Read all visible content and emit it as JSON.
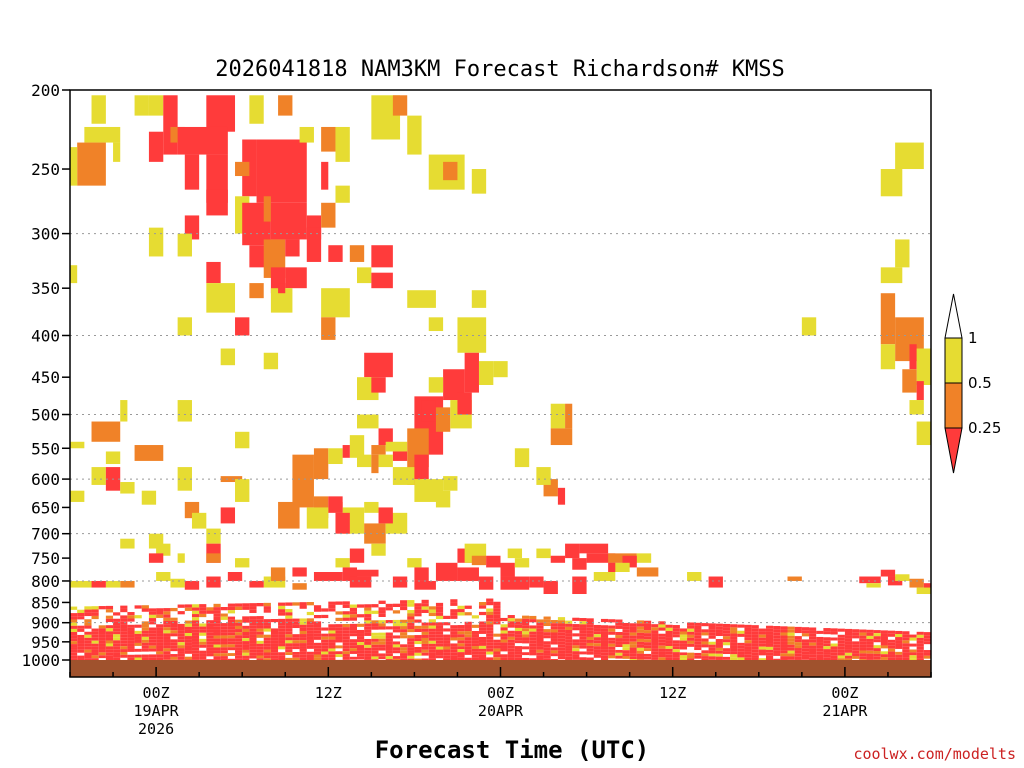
{
  "chart_data": {
    "type": "heatmap",
    "title": "2026041818 NAM3KM Forecast Richardson# KMSS",
    "xlabel": "Forecast Time (UTC)",
    "credit": "coolwx.com/modelts",
    "y_scale": "log-pressure",
    "y_range": [
      1000,
      200
    ],
    "y_ticks": [
      200,
      250,
      300,
      350,
      400,
      450,
      500,
      550,
      600,
      650,
      700,
      750,
      800,
      850,
      900,
      950,
      1000
    ],
    "y_grid_levels": [
      300,
      400,
      500,
      600,
      700,
      800,
      900
    ],
    "x_range_hours": [
      0,
      60
    ],
    "x_ticks": [
      {
        "hour": 6,
        "line1": "00Z",
        "line2": "19APR",
        "line3": "2026"
      },
      {
        "hour": 18,
        "line1": "12Z",
        "line2": "",
        "line3": ""
      },
      {
        "hour": 30,
        "line1": "00Z",
        "line2": "20APR",
        "line3": ""
      },
      {
        "hour": 42,
        "line1": "12Z",
        "line2": "",
        "line3": ""
      },
      {
        "hour": 54,
        "line1": "00Z",
        "line2": "21APR",
        "line3": ""
      }
    ],
    "colorbar": {
      "labels": [
        "1",
        "0.5",
        "0.25"
      ],
      "colors": {
        "low": "#ff3b3b",
        "mid": "#f08228",
        "high": "#e6dc32",
        "top": "#ffffff"
      }
    },
    "categories_note": [
      "red = Ri < 0.25",
      "orange = 0.25–0.5",
      "yellow = 0.5–1"
    ],
    "ground_color": "#a0522d",
    "cells": [
      [
        "y",
        1.5,
        2.5,
        203,
        220
      ],
      [
        "y",
        4.5,
        5.5,
        203,
        215
      ],
      [
        "y",
        5.5,
        6.5,
        203,
        215
      ],
      [
        "r",
        6.5,
        7.5,
        203,
        240
      ],
      [
        "r",
        9.5,
        11.5,
        203,
        225
      ],
      [
        "y",
        12.5,
        13.5,
        203,
        220
      ],
      [
        "o",
        14.5,
        15.5,
        203,
        215
      ],
      [
        "y",
        21,
        23,
        203,
        230
      ],
      [
        "o",
        22.5,
        23.5,
        203,
        215
      ],
      [
        "y",
        23.5,
        24.5,
        215,
        240
      ],
      [
        "y",
        1,
        3.5,
        222,
        232
      ],
      [
        "o",
        0.5,
        2.5,
        232,
        262
      ],
      [
        "y",
        0,
        0.5,
        235,
        262
      ],
      [
        "y",
        3,
        3.5,
        232,
        245
      ],
      [
        "r",
        5.5,
        6.5,
        225,
        245
      ],
      [
        "o",
        7,
        8,
        222,
        232
      ],
      [
        "r",
        7.5,
        11,
        222,
        240
      ],
      [
        "r",
        8,
        9,
        240,
        265
      ],
      [
        "r",
        9.5,
        11,
        240,
        275
      ],
      [
        "r",
        12,
        13,
        230,
        270
      ],
      [
        "r",
        13,
        16.5,
        230,
        275
      ],
      [
        "o",
        11.5,
        12.5,
        245,
        255
      ],
      [
        "y",
        16,
        17,
        222,
        232
      ],
      [
        "o",
        17.5,
        18.5,
        222,
        238
      ],
      [
        "y",
        18.5,
        19.5,
        222,
        245
      ],
      [
        "r",
        17.5,
        18,
        245,
        265
      ],
      [
        "y",
        18.5,
        19.5,
        262,
        275
      ],
      [
        "r",
        9.5,
        11,
        265,
        285
      ],
      [
        "y",
        11.5,
        12.5,
        270,
        300
      ],
      [
        "r",
        12,
        14,
        275,
        310
      ],
      [
        "o",
        13.5,
        14,
        270,
        290
      ],
      [
        "r",
        14,
        16.5,
        275,
        305
      ],
      [
        "r",
        16.5,
        17.5,
        285,
        305
      ],
      [
        "o",
        17.5,
        18.5,
        275,
        295
      ],
      [
        "y",
        25,
        27.5,
        240,
        265
      ],
      [
        "o",
        26,
        27,
        245,
        258
      ],
      [
        "y",
        28,
        29,
        250,
        268
      ],
      [
        "y",
        57.5,
        59.5,
        232,
        250
      ],
      [
        "y",
        56.5,
        58,
        250,
        270
      ],
      [
        "r",
        8,
        9,
        285,
        305
      ],
      [
        "y",
        7.5,
        8.5,
        300,
        320
      ],
      [
        "y",
        5.5,
        6.5,
        295,
        320
      ],
      [
        "r",
        12.5,
        14,
        310,
        330
      ],
      [
        "o",
        13.5,
        15,
        305,
        340
      ],
      [
        "r",
        15,
        16,
        305,
        320
      ],
      [
        "r",
        16.5,
        17.5,
        295,
        325
      ],
      [
        "r",
        18,
        19,
        310,
        325
      ],
      [
        "o",
        19.5,
        20.5,
        310,
        325
      ],
      [
        "r",
        21,
        22.5,
        310,
        330
      ],
      [
        "y",
        57.5,
        58.5,
        305,
        330
      ],
      [
        "y",
        56.5,
        58,
        330,
        345
      ],
      [
        "r",
        9.5,
        10.5,
        325,
        345
      ],
      [
        "r",
        14,
        15,
        330,
        355
      ],
      [
        "r",
        15,
        16.5,
        330,
        350
      ],
      [
        "y",
        20,
        21,
        330,
        345
      ],
      [
        "r",
        21,
        22.5,
        335,
        350
      ],
      [
        "y",
        0,
        0.5,
        328,
        345
      ],
      [
        "y",
        9.5,
        11.5,
        345,
        375
      ],
      [
        "o",
        12.5,
        13.5,
        345,
        360
      ],
      [
        "y",
        14,
        15.5,
        350,
        375
      ],
      [
        "r",
        14.5,
        15,
        345,
        355
      ],
      [
        "y",
        17.5,
        19.5,
        350,
        380
      ],
      [
        "y",
        23.5,
        25.5,
        352,
        370
      ],
      [
        "y",
        28,
        29,
        352,
        370
      ],
      [
        "o",
        56.5,
        57.5,
        355,
        410
      ],
      [
        "o",
        57.5,
        59.5,
        380,
        430
      ],
      [
        "r",
        58.5,
        59,
        410,
        440
      ],
      [
        "r",
        11.5,
        12.5,
        380,
        400
      ],
      [
        "y",
        7.5,
        8.5,
        380,
        400
      ],
      [
        "o",
        17.5,
        18.5,
        380,
        405
      ],
      [
        "y",
        25,
        26,
        380,
        395
      ],
      [
        "y",
        27,
        29,
        380,
        420
      ],
      [
        "y",
        51,
        52,
        380,
        400
      ],
      [
        "y",
        10.5,
        11.5,
        415,
        435
      ],
      [
        "y",
        13.5,
        14.5,
        420,
        440
      ],
      [
        "y",
        56.5,
        57.5,
        410,
        440
      ],
      [
        "y",
        59,
        60,
        415,
        460
      ],
      [
        "o",
        60,
        60.5,
        415,
        430
      ],
      [
        "r",
        20.5,
        22.5,
        420,
        450
      ],
      [
        "r",
        27.5,
        28.5,
        420,
        470
      ],
      [
        "r",
        26,
        27.5,
        440,
        480
      ],
      [
        "y",
        28.5,
        29.5,
        430,
        460
      ],
      [
        "y",
        29.5,
        30.5,
        430,
        450
      ],
      [
        "y",
        20,
        21.5,
        450,
        480
      ],
      [
        "r",
        21,
        22,
        450,
        470
      ],
      [
        "y",
        25,
        26,
        450,
        470
      ],
      [
        "o",
        58,
        59,
        440,
        470
      ],
      [
        "r",
        59,
        59.5,
        455,
        480
      ],
      [
        "y",
        3.5,
        4,
        480,
        510
      ],
      [
        "y",
        7.5,
        8.5,
        480,
        510
      ],
      [
        "o",
        1.5,
        3.5,
        510,
        540
      ],
      [
        "r",
        24,
        26,
        475,
        560
      ],
      [
        "r",
        24.5,
        25.5,
        480,
        510
      ],
      [
        "o",
        25.5,
        26.5,
        490,
        525
      ],
      [
        "y",
        26.5,
        28,
        480,
        520
      ],
      [
        "r",
        27,
        28,
        470,
        500
      ],
      [
        "y",
        20,
        21.5,
        500,
        520
      ],
      [
        "y",
        58.5,
        59.5,
        480,
        500
      ],
      [
        "y",
        59,
        60,
        510,
        545
      ],
      [
        "y",
        33.5,
        34.5,
        485,
        520
      ],
      [
        "o",
        33.5,
        35,
        520,
        545
      ],
      [
        "o",
        34.5,
        35,
        485,
        520
      ],
      [
        "y",
        0,
        1,
        540,
        550
      ],
      [
        "o",
        4.5,
        6.5,
        545,
        570
      ],
      [
        "y",
        2.5,
        3.5,
        555,
        575
      ],
      [
        "y",
        11.5,
        12.5,
        525,
        550
      ],
      [
        "y",
        19.5,
        20.5,
        530,
        565
      ],
      [
        "r",
        21.5,
        22.5,
        520,
        545
      ],
      [
        "o",
        21,
        22,
        545,
        560
      ],
      [
        "y",
        22,
        23.5,
        540,
        555
      ],
      [
        "r",
        22.5,
        23.5,
        555,
        570
      ],
      [
        "o",
        23.5,
        25,
        520,
        580
      ],
      [
        "r",
        24,
        25,
        560,
        600
      ],
      [
        "y",
        21.5,
        22.5,
        560,
        580
      ],
      [
        "r",
        23.5,
        24.5,
        580,
        610
      ],
      [
        "o",
        17,
        18,
        550,
        600
      ],
      [
        "y",
        18,
        19,
        550,
        575
      ],
      [
        "r",
        19,
        19.5,
        545,
        565
      ],
      [
        "y",
        20,
        21,
        560,
        580
      ],
      [
        "o",
        21,
        21.5,
        560,
        590
      ],
      [
        "y",
        22.5,
        24,
        580,
        610
      ],
      [
        "y",
        24,
        26,
        600,
        640
      ],
      [
        "y",
        26,
        27,
        595,
        620
      ],
      [
        "y",
        25.5,
        26.5,
        620,
        650
      ],
      [
        "y",
        31,
        32,
        550,
        580
      ],
      [
        "o",
        33,
        34,
        600,
        630
      ],
      [
        "r",
        34,
        34.5,
        615,
        645
      ],
      [
        "y",
        32.5,
        33.5,
        580,
        610
      ],
      [
        "y",
        60,
        60.5,
        590,
        610
      ],
      [
        "y",
        1.5,
        2.5,
        580,
        610
      ],
      [
        "r",
        2.5,
        3.5,
        580,
        620
      ],
      [
        "y",
        3.5,
        4.5,
        605,
        625
      ],
      [
        "y",
        0,
        1,
        620,
        640
      ],
      [
        "y",
        5,
        6,
        620,
        645
      ],
      [
        "y",
        7.5,
        8.5,
        580,
        620
      ],
      [
        "o",
        10.5,
        12,
        595,
        605
      ],
      [
        "y",
        11.5,
        12.5,
        600,
        640
      ],
      [
        "o",
        15.5,
        17,
        560,
        650
      ],
      [
        "o",
        14.5,
        16,
        640,
        690
      ],
      [
        "o",
        17,
        18,
        630,
        670
      ],
      [
        "o",
        18.5,
        19,
        640,
        660
      ],
      [
        "y",
        19,
        20.5,
        650,
        700
      ],
      [
        "r",
        18,
        19,
        630,
        660
      ],
      [
        "r",
        18.5,
        19.5,
        660,
        700
      ],
      [
        "o",
        20.5,
        22,
        680,
        720
      ],
      [
        "y",
        22,
        23.5,
        660,
        700
      ],
      [
        "r",
        21.5,
        22.5,
        650,
        680
      ],
      [
        "y",
        16.5,
        18,
        650,
        690
      ],
      [
        "y",
        20.5,
        21.5,
        640,
        660
      ],
      [
        "o",
        8,
        9,
        640,
        670
      ],
      [
        "y",
        8.5,
        9.5,
        660,
        690
      ],
      [
        "r",
        10.5,
        11.5,
        650,
        680
      ],
      [
        "y",
        9.5,
        10.5,
        690,
        720
      ],
      [
        "r",
        9.5,
        10.5,
        720,
        760
      ],
      [
        "o",
        9.5,
        10.5,
        740,
        760
      ],
      [
        "y",
        5.5,
        6.5,
        700,
        730
      ],
      [
        "y",
        3.5,
        4.5,
        710,
        730
      ],
      [
        "y",
        6,
        7,
        720,
        745
      ],
      [
        "r",
        5.5,
        6.5,
        740,
        760
      ],
      [
        "y",
        11.5,
        12.5,
        750,
        770
      ],
      [
        "y",
        7.5,
        8,
        740,
        760
      ],
      [
        "y",
        18.5,
        19.5,
        750,
        770
      ],
      [
        "r",
        19.5,
        20.5,
        730,
        760
      ],
      [
        "y",
        21,
        22,
        720,
        745
      ],
      [
        "y",
        23.5,
        24.5,
        750,
        770
      ],
      [
        "r",
        27,
        28,
        730,
        760
      ],
      [
        "y",
        27.5,
        29,
        720,
        760
      ],
      [
        "o",
        28,
        29,
        745,
        765
      ],
      [
        "r",
        29,
        30,
        745,
        770
      ],
      [
        "r",
        30,
        31,
        760,
        790
      ],
      [
        "y",
        30.5,
        31.5,
        730,
        750
      ],
      [
        "y",
        31,
        32,
        750,
        770
      ],
      [
        "y",
        32.5,
        33.5,
        730,
        750
      ],
      [
        "r",
        33.5,
        34.5,
        745,
        760
      ],
      [
        "r",
        34.5,
        35.5,
        720,
        750
      ],
      [
        "r",
        35,
        36,
        750,
        775
      ],
      [
        "r",
        35.5,
        37.5,
        720,
        740
      ],
      [
        "r",
        36,
        38,
        740,
        760
      ],
      [
        "o",
        37.5,
        39.5,
        740,
        760
      ],
      [
        "y",
        39.5,
        40.5,
        740,
        760
      ],
      [
        "r",
        38.5,
        39.5,
        745,
        770
      ],
      [
        "r",
        37.5,
        38.5,
        760,
        780
      ],
      [
        "y",
        38,
        39,
        760,
        780
      ],
      [
        "r",
        24,
        25,
        770,
        800
      ],
      [
        "r",
        25.5,
        27,
        760,
        800
      ],
      [
        "r",
        27,
        28.5,
        770,
        800
      ],
      [
        "r",
        28.5,
        29.5,
        790,
        820
      ],
      [
        "r",
        30,
        32,
        790,
        820
      ],
      [
        "r",
        32,
        33,
        790,
        815
      ],
      [
        "r",
        33,
        34,
        800,
        830
      ],
      [
        "r",
        35,
        36,
        790,
        830
      ],
      [
        "y",
        36.5,
        38,
        780,
        800
      ],
      [
        "o",
        39.5,
        41,
        770,
        790
      ],
      [
        "y",
        43,
        44,
        780,
        800
      ],
      [
        "r",
        44.5,
        45.5,
        790,
        815
      ],
      [
        "o",
        50,
        51,
        790,
        800
      ],
      [
        "r",
        55,
        56.5,
        790,
        805
      ],
      [
        "r",
        56.5,
        57.5,
        775,
        790
      ],
      [
        "r",
        57,
        58,
        790,
        810
      ],
      [
        "y",
        57.5,
        58.5,
        785,
        800
      ],
      [
        "o",
        58.5,
        59.5,
        795,
        815
      ],
      [
        "y",
        55.5,
        56.5,
        805,
        815
      ],
      [
        "r",
        59.5,
        60.5,
        805,
        830
      ],
      [
        "y",
        59,
        60,
        815,
        830
      ],
      [
        "r",
        11,
        12,
        780,
        800
      ],
      [
        "y",
        13.5,
        15,
        790,
        815
      ],
      [
        "o",
        14,
        15,
        770,
        800
      ],
      [
        "r",
        15.5,
        16.5,
        770,
        790
      ],
      [
        "r",
        17,
        19,
        780,
        800
      ],
      [
        "r",
        19,
        20,
        770,
        800
      ],
      [
        "r",
        19.5,
        21,
        790,
        815
      ],
      [
        "r",
        20,
        21.5,
        775,
        790
      ],
      [
        "r",
        22.5,
        23.5,
        790,
        815
      ],
      [
        "r",
        24,
        25.5,
        800,
        820
      ],
      [
        "r",
        9.5,
        10.5,
        790,
        815
      ],
      [
        "y",
        6,
        7,
        780,
        800
      ],
      [
        "o",
        3.5,
        4.5,
        800,
        815
      ],
      [
        "y",
        2.5,
        3.5,
        800,
        815
      ],
      [
        "r",
        1.5,
        2.5,
        800,
        815
      ],
      [
        "y",
        0,
        1.5,
        800,
        815
      ],
      [
        "y",
        7,
        8,
        795,
        815
      ],
      [
        "r",
        8,
        9,
        800,
        820
      ],
      [
        "r",
        12.5,
        13.5,
        800,
        815
      ],
      [
        "o",
        15.5,
        16.5,
        805,
        820
      ]
    ]
  }
}
